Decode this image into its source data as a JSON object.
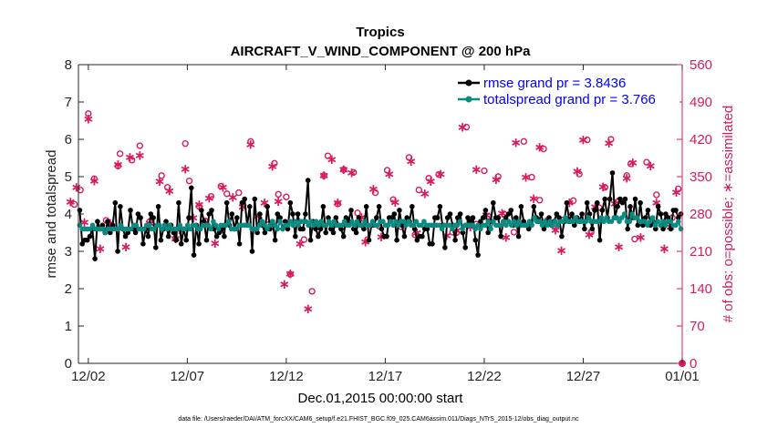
{
  "chart_data": {
    "type": "line",
    "title": "Tropics",
    "subtitle": "AIRCRAFT_V_WIND_COMPONENT @ 200 hPa",
    "xlabel": "Dec.01,2015 00:00:00 start",
    "ylabel_left": "rmse and totalspread",
    "ylabel_right": "# of obs: o=possible; ∗=assimilated",
    "footer": "data file: /Users/raeder/DAI/ATM_forcXX/CAM6_setup/f.e21.FHIST_BGC.f09_025.CAM6assim.011/Diags_NTrS_2015-12/obs_diag_output.nc",
    "x_range_days": [
      0.5,
      31
    ],
    "x_ticks": [
      {
        "day": 1,
        "label": "12/02"
      },
      {
        "day": 6,
        "label": "12/07"
      },
      {
        "day": 11,
        "label": "12/12"
      },
      {
        "day": 16,
        "label": "12/17"
      },
      {
        "day": 21,
        "label": "12/22"
      },
      {
        "day": 26,
        "label": "12/27"
      },
      {
        "day": 31,
        "label": "01/01"
      }
    ],
    "ylim_left": [
      0,
      8
    ],
    "y_ticks_left": [
      "0",
      "1",
      "2",
      "3",
      "4",
      "5",
      "6",
      "7",
      "8"
    ],
    "ylim_right": [
      0,
      560
    ],
    "y_ticks_right": [
      "0",
      "70",
      "140",
      "210",
      "280",
      "350",
      "420",
      "490",
      "560"
    ],
    "legend": {
      "position": "top-right",
      "entries": [
        "rmse grand pr = 3.8436",
        "totalspread grand pr = 3.766"
      ]
    },
    "colors": {
      "rmse": "#000000",
      "totalspread": "#0a8a80",
      "obs": "#d81b60",
      "right_axis": "#d81b60",
      "legend_text": "#0000ff"
    },
    "series": [
      {
        "name": "rmse",
        "axis": "left",
        "values": [
          4.1,
          3.2,
          3.3,
          3.3,
          3.4,
          3.6,
          2.8,
          3.8,
          3.6,
          3.7,
          3.5,
          3.8,
          3.5,
          3.7,
          4.3,
          3.0,
          4.2,
          3.6,
          3.4,
          3.5,
          4.1,
          3.6,
          3.5,
          4.0,
          3.9,
          3.2,
          3.6,
          3.4,
          4.0,
          3.9,
          3.1,
          4.2,
          3.3,
          3.6,
          3.8,
          3.4,
          3.7,
          3.5,
          3.3,
          4.3,
          3.2,
          3.6,
          3.3,
          3.9,
          4.7,
          2.9,
          3.7,
          3.2,
          4.1,
          3.8,
          3.3,
          4.0,
          4.1,
          3.6,
          3.4,
          3.5,
          3.6,
          3.4,
          4.3,
          3.7,
          4.0,
          3.6,
          3.9,
          3.2,
          4.3,
          4.4,
          3.7,
          4.2,
          3.0,
          4.4,
          3.5,
          4.0,
          3.7,
          3.5,
          4.2,
          3.6,
          3.8,
          3.3,
          4.0,
          3.9,
          3.6,
          3.8,
          3.6,
          4.3,
          4.0,
          3.4,
          4.0,
          3.6,
          3.6,
          4.0,
          4.9,
          3.3,
          3.8,
          3.6,
          3.4,
          3.6,
          4.2,
          3.5,
          3.9,
          3.6,
          3.5,
          3.9,
          3.7,
          3.6,
          3.4,
          3.9,
          3.8,
          4.1,
          3.6,
          3.5,
          3.9,
          3.7,
          3.6,
          4.2,
          3.3,
          3.7,
          3.7,
          3.9,
          4.2,
          3.6,
          3.4,
          3.4,
          3.9,
          3.9,
          4.0,
          3.3,
          4.1,
          3.7,
          3.4,
          3.9,
          3.8,
          4.2,
          3.6,
          3.3,
          3.4,
          3.4,
          3.6,
          3.6,
          3.2,
          3.2,
          3.9,
          3.9,
          4.2,
          3.7,
          3.1,
          3.9,
          4.0,
          3.7,
          3.3,
          3.9,
          4.0,
          3.5,
          3.1,
          3.9,
          3.8,
          3.9,
          3.3,
          2.9,
          3.8,
          3.9,
          4.1,
          3.5,
          3.8,
          4.3,
          3.9,
          3.9,
          3.4,
          3.8,
          3.9,
          4.0,
          4.1,
          3.7,
          3.9,
          3.4,
          4.2,
          3.8,
          3.7,
          3.6,
          3.7,
          4.2,
          3.9,
          3.8,
          4.0,
          3.6,
          3.8,
          3.9,
          3.7,
          3.8,
          4.0,
          3.9,
          3.4,
          3.8,
          4.3,
          3.8,
          4.0,
          3.7,
          3.9,
          3.8,
          4.0,
          3.6,
          4.3,
          4.0,
          3.6,
          4.1,
          4.3,
          3.3,
          4.1,
          4.4,
          3.9,
          4.4,
          5.1,
          3.9,
          4.2,
          4.4,
          4.3,
          4.4,
          3.6,
          4.2,
          3.9,
          4.4,
          3.7,
          4.3,
          3.7,
          3.9,
          4.1,
          3.7,
          3.8,
          3.6,
          4.2,
          4.0,
          3.6,
          4.0,
          3.9,
          3.6,
          4.1,
          4.1,
          3.9,
          4.0
        ]
      },
      {
        "name": "totalspread",
        "axis": "left",
        "values": [
          3.7,
          3.6,
          3.6,
          3.6,
          3.6,
          3.7,
          3.6,
          3.6,
          3.6,
          3.6,
          3.5,
          3.6,
          3.6,
          3.6,
          3.6,
          3.6,
          3.7,
          3.6,
          3.6,
          3.6,
          3.6,
          3.7,
          3.7,
          3.6,
          3.6,
          3.6,
          3.7,
          3.7,
          3.6,
          3.6,
          3.7,
          3.7,
          3.6,
          3.7,
          3.6,
          3.7,
          3.6,
          3.6,
          3.6,
          3.7,
          3.6,
          3.6,
          3.7,
          3.6,
          3.7,
          3.7,
          3.6,
          3.6,
          3.7,
          3.7,
          3.7,
          3.6,
          3.8,
          3.7,
          3.6,
          3.7,
          3.7,
          3.7,
          3.8,
          3.6,
          3.6,
          3.6,
          3.7,
          3.7,
          3.7,
          3.7,
          3.7,
          3.6,
          3.6,
          3.6,
          3.7,
          3.8,
          3.7,
          3.6,
          3.7,
          3.8,
          3.7,
          3.6,
          3.8,
          3.6,
          3.7,
          3.7,
          3.8,
          3.7,
          3.8,
          3.7,
          3.8,
          3.8,
          3.8,
          3.7,
          3.8,
          3.7,
          3.8,
          3.7,
          3.8,
          3.7,
          3.7,
          3.8,
          3.7,
          3.8,
          3.7,
          3.7,
          3.7,
          3.8,
          3.7,
          3.7,
          3.8,
          3.7,
          3.8,
          3.7,
          3.7,
          3.8,
          3.7,
          3.7,
          3.8,
          3.7,
          3.7,
          3.8,
          3.8,
          3.7,
          3.7,
          3.8,
          3.7,
          3.8,
          3.7,
          3.8,
          3.8,
          3.7,
          3.8,
          3.7,
          3.7,
          3.8,
          3.7,
          3.7,
          3.8,
          3.7,
          3.7,
          3.7,
          3.7,
          3.7,
          3.7,
          3.6,
          3.7,
          3.7,
          3.7,
          3.6,
          3.7,
          3.7,
          3.8,
          3.6,
          3.7,
          3.7,
          3.7,
          3.7,
          3.6,
          3.7,
          3.6,
          3.7,
          3.7,
          3.8,
          3.6,
          3.8,
          3.7,
          3.7,
          3.7,
          3.8,
          3.7,
          3.8,
          3.7,
          3.8,
          3.7,
          3.8,
          3.7,
          3.7,
          3.7,
          3.8,
          3.7,
          3.9,
          3.8,
          3.8,
          3.7,
          3.8,
          3.7,
          3.8,
          3.7,
          3.8,
          3.7,
          3.8,
          3.8,
          3.9,
          3.8,
          3.8,
          3.8,
          3.9,
          3.8,
          3.8,
          3.8,
          3.8,
          3.9,
          3.8,
          3.8,
          3.8,
          3.8,
          3.9,
          3.8,
          3.9,
          3.8,
          3.8,
          3.9,
          3.9,
          3.8,
          3.9,
          4.0,
          3.8,
          3.8,
          4.0,
          3.9,
          3.9,
          3.8,
          3.8,
          3.8,
          3.7,
          3.8,
          3.9,
          3.7,
          3.8,
          3.7,
          3.8,
          3.7,
          3.8,
          3.8,
          3.7,
          3.7,
          3.8,
          3.6
        ]
      },
      {
        "name": "obs_possible",
        "axis": "right",
        "marker": "o",
        "points": [
          [
            0.3,
            298
          ],
          [
            0.6,
            325
          ],
          [
            1.0,
            468
          ],
          [
            1.3,
            346
          ],
          [
            1.9,
            268
          ],
          [
            2.1,
            257
          ],
          [
            2.5,
            370
          ],
          [
            2.6,
            393
          ],
          [
            3.2,
            381
          ],
          [
            3.6,
            408
          ],
          [
            4.1,
            266
          ],
          [
            4.7,
            352
          ],
          [
            5.0,
            330
          ],
          [
            5.4,
            234
          ],
          [
            5.9,
            412
          ],
          [
            6.1,
            342
          ],
          [
            6.6,
            294
          ],
          [
            6.9,
            267
          ],
          [
            7.2,
            313
          ],
          [
            7.7,
            332
          ],
          [
            8.0,
            318
          ],
          [
            8.6,
            320
          ],
          [
            9.2,
            416
          ],
          [
            10.1,
            260
          ],
          [
            10.4,
            375
          ],
          [
            10.6,
            317
          ],
          [
            11.0,
            312
          ],
          [
            11.2,
            167
          ],
          [
            11.9,
            232
          ],
          [
            12.3,
            135
          ],
          [
            12.6,
            251
          ],
          [
            12.9,
            352
          ],
          [
            13.1,
            389
          ],
          [
            13.6,
            299
          ],
          [
            13.9,
            363
          ],
          [
            14.4,
            358
          ],
          [
            14.6,
            282
          ],
          [
            15.1,
            232
          ],
          [
            15.5,
            320
          ],
          [
            15.7,
            257
          ],
          [
            16.1,
            362
          ],
          [
            16.4,
            307
          ],
          [
            16.8,
            256
          ],
          [
            17.2,
            386
          ],
          [
            17.5,
            241
          ],
          [
            17.7,
            325
          ],
          [
            18.2,
            347
          ],
          [
            18.7,
            354
          ],
          [
            19.4,
            246
          ],
          [
            19.6,
            245
          ],
          [
            20.1,
            443
          ],
          [
            20.6,
            261
          ],
          [
            21.0,
            361
          ],
          [
            21.2,
            276
          ],
          [
            21.7,
            350
          ],
          [
            22.0,
            280
          ],
          [
            22.5,
            246
          ],
          [
            23.0,
            416
          ],
          [
            23.4,
            349
          ],
          [
            23.8,
            306
          ],
          [
            24.0,
            402
          ],
          [
            24.6,
            257
          ],
          [
            25.0,
            269
          ],
          [
            25.5,
            305
          ],
          [
            25.8,
            355
          ],
          [
            26.2,
            419
          ],
          [
            26.4,
            246
          ],
          [
            26.8,
            292
          ],
          [
            27.1,
            330
          ],
          [
            27.4,
            420
          ],
          [
            27.8,
            305
          ],
          [
            28.2,
            352
          ],
          [
            28.4,
            374
          ],
          [
            28.6,
            233
          ],
          [
            29.2,
            377
          ],
          [
            29.7,
            316
          ],
          [
            30.1,
            260
          ],
          [
            30.5,
            273
          ],
          [
            30.8,
            327
          ]
        ]
      },
      {
        "name": "obs_assimilated",
        "axis": "right",
        "marker": "*",
        "points": [
          [
            0.1,
            305
          ],
          [
            0.4,
            332
          ],
          [
            0.8,
            266
          ],
          [
            1.0,
            460
          ],
          [
            1.3,
            344
          ],
          [
            1.6,
            217
          ],
          [
            2.1,
            265
          ],
          [
            2.5,
            375
          ],
          [
            2.9,
            220
          ],
          [
            3.1,
            388
          ],
          [
            3.6,
            392
          ],
          [
            4.1,
            265
          ],
          [
            4.6,
            343
          ],
          [
            5.1,
            325
          ],
          [
            5.4,
            236
          ],
          [
            5.6,
            253
          ],
          [
            5.9,
            366
          ],
          [
            6.3,
            275
          ],
          [
            6.6,
            300
          ],
          [
            6.9,
            265
          ],
          [
            7.1,
            312
          ],
          [
            7.4,
            227
          ],
          [
            7.8,
            332
          ],
          [
            8.3,
            313
          ],
          [
            8.8,
            295
          ],
          [
            9.2,
            412
          ],
          [
            9.6,
            278
          ],
          [
            9.9,
            303
          ],
          [
            10.3,
            371
          ],
          [
            10.6,
            306
          ],
          [
            10.9,
            150
          ],
          [
            11.2,
            170
          ],
          [
            11.7,
            226
          ],
          [
            12.1,
            104
          ],
          [
            12.5,
            265
          ],
          [
            12.9,
            354
          ],
          [
            13.3,
            384
          ],
          [
            13.6,
            303
          ],
          [
            13.9,
            365
          ],
          [
            14.3,
            359
          ],
          [
            14.8,
            276
          ],
          [
            15.0,
            230
          ],
          [
            15.4,
            329
          ],
          [
            15.8,
            239
          ],
          [
            16.2,
            357
          ],
          [
            16.5,
            304
          ],
          [
            16.9,
            263
          ],
          [
            17.3,
            381
          ],
          [
            17.6,
            247
          ],
          [
            18.0,
            320
          ],
          [
            18.3,
            343
          ],
          [
            18.8,
            357
          ],
          [
            19.1,
            242
          ],
          [
            19.6,
            251
          ],
          [
            19.9,
            445
          ],
          [
            20.3,
            258
          ],
          [
            20.6,
            365
          ],
          [
            21.1,
            280
          ],
          [
            21.6,
            347
          ],
          [
            21.9,
            283
          ],
          [
            22.1,
            238
          ],
          [
            22.6,
            416
          ],
          [
            23.1,
            351
          ],
          [
            23.5,
            311
          ],
          [
            23.8,
            407
          ],
          [
            24.1,
            268
          ],
          [
            24.6,
            252
          ],
          [
            24.9,
            213
          ],
          [
            25.3,
            303
          ],
          [
            25.7,
            362
          ],
          [
            26.0,
            421
          ],
          [
            26.3,
            243
          ],
          [
            26.6,
            295
          ],
          [
            27.0,
            333
          ],
          [
            27.3,
            415
          ],
          [
            27.6,
            301
          ],
          [
            27.8,
            220
          ],
          [
            28.2,
            349
          ],
          [
            28.5,
            378
          ],
          [
            28.9,
            238
          ],
          [
            29.4,
            372
          ],
          [
            29.7,
            303
          ],
          [
            30.1,
            217
          ],
          [
            30.4,
            258
          ],
          [
            30.7,
            323
          ]
        ]
      }
    ]
  }
}
